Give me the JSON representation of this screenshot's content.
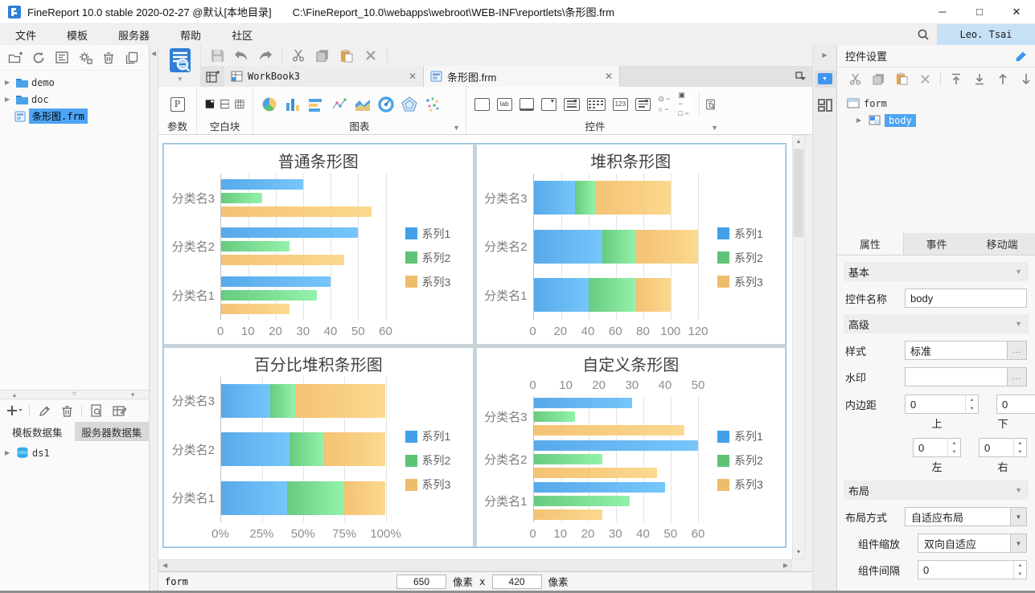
{
  "window": {
    "app_title": "FineReport 10.0 stable 2020-02-27 @默认[本地目录]",
    "file_path": "C:\\FineReport_10.0\\webapps\\webroot\\WEB-INF\\reportlets\\条形图.frm"
  },
  "menu": {
    "file": "文件",
    "template": "模板",
    "server": "服务器",
    "help": "帮助",
    "community": "社区",
    "user": "Leo. Tsai"
  },
  "file_tree": {
    "items": [
      {
        "label": "demo"
      },
      {
        "label": "doc"
      },
      {
        "label": "条形图.frm"
      }
    ]
  },
  "doc_tabs": {
    "workbook": "WorkBook3",
    "current": "条形图.frm"
  },
  "palette": {
    "param": "参数",
    "blank": "空白块",
    "chart": "图表",
    "widget": "控件"
  },
  "icons": {
    "param_glyph": "P",
    "lab_glyph": "lab",
    "num_glyph": "123"
  },
  "dataset_panel": {
    "tab_template": "模板数据集",
    "tab_server": "服务器数据集",
    "ds1": "ds1"
  },
  "canvas_status": {
    "form": "form",
    "width": "650",
    "px1": "像素",
    "x": "x",
    "height": "420",
    "px2": "像素"
  },
  "widget_panel": {
    "title": "控件设置",
    "tree_root": "form",
    "tree_child": "body",
    "tab_attr": "属性",
    "tab_event": "事件",
    "tab_mobile": "移动端",
    "sec_basic": "基本",
    "sec_advanced": "高级",
    "sec_layout": "布局",
    "name_label": "控件名称",
    "name_value": "body",
    "style_label": "样式",
    "style_value": "标准",
    "watermark_label": "水印",
    "watermark_value": "",
    "padding_label": "内边距",
    "pad_top": "0",
    "pad_bottom": "0",
    "pad_left": "0",
    "pad_right": "0",
    "lbl_top": "上",
    "lbl_bottom": "下",
    "lbl_left": "左",
    "lbl_right": "右",
    "layout_mode_label": "布局方式",
    "layout_mode_value": "自适应布局",
    "scale_label": "组件缩放",
    "scale_value": "双向自适应",
    "gap_label": "组件间隔",
    "gap_value": "0",
    "ellipsis": "..."
  },
  "chart_colors": [
    {
      "from": "#58a9ea",
      "to": "#76c6fb",
      "legend": "#41a0e8"
    },
    {
      "from": "#67cb80",
      "to": "#93f2a9",
      "legend": "#5dc476"
    },
    {
      "from": "#f4c273",
      "to": "#fbd98f",
      "legend": "#eebd6b"
    }
  ],
  "chart_data": [
    {
      "type": "bar",
      "variant": "grouped",
      "title": "普通条形图",
      "categories": [
        "分类名1",
        "分类名2",
        "分类名3"
      ],
      "series": [
        {
          "name": "系列1",
          "values": [
            40,
            50,
            30
          ]
        },
        {
          "name": "系列2",
          "values": [
            35,
            25,
            15
          ]
        },
        {
          "name": "系列3",
          "values": [
            25,
            45,
            55
          ]
        }
      ],
      "x_axis": {
        "max": 60,
        "ticks": [
          0,
          10,
          20,
          30,
          40,
          50,
          60
        ],
        "labels": [
          "0",
          "10",
          "20",
          "30",
          "40",
          "50",
          "60"
        ]
      },
      "legend_position": "right",
      "grid": true
    },
    {
      "type": "bar",
      "variant": "stacked",
      "title": "堆积条形图",
      "categories": [
        "分类名1",
        "分类名2",
        "分类名3"
      ],
      "series": [
        {
          "name": "系列1",
          "values": [
            40,
            50,
            30
          ]
        },
        {
          "name": "系列2",
          "values": [
            35,
            25,
            15
          ]
        },
        {
          "name": "系列3",
          "values": [
            25,
            45,
            55
          ]
        }
      ],
      "x_axis": {
        "max": 120,
        "ticks": [
          0,
          20,
          40,
          60,
          80,
          100,
          120
        ],
        "labels": [
          "0",
          "20",
          "40",
          "60",
          "80",
          "100",
          "120"
        ]
      },
      "legend_position": "right",
      "grid": true
    },
    {
      "type": "bar",
      "variant": "percent",
      "title": "百分比堆积条形图",
      "categories": [
        "分类名1",
        "分类名2",
        "分类名3"
      ],
      "series": [
        {
          "name": "系列1",
          "values": [
            40,
            50,
            30
          ]
        },
        {
          "name": "系列2",
          "values": [
            35,
            25,
            15
          ]
        },
        {
          "name": "系列3",
          "values": [
            25,
            45,
            55
          ]
        }
      ],
      "x_axis": {
        "max": 100,
        "ticks": [
          0,
          25,
          50,
          75,
          100
        ],
        "labels": [
          "0%",
          "25%",
          "50%",
          "75%",
          "100%"
        ]
      },
      "legend_position": "right",
      "grid": true
    },
    {
      "type": "bar",
      "variant": "grouped",
      "title": "自定义条形图",
      "categories": [
        "分类名1",
        "分类名2",
        "分类名3"
      ],
      "series": [
        {
          "name": "系列1",
          "values": [
            40,
            50,
            30
          ],
          "axis": "top"
        },
        {
          "name": "系列2",
          "values": [
            35,
            25,
            15
          ],
          "axis": "bottom"
        },
        {
          "name": "系列3",
          "values": [
            25,
            45,
            55
          ],
          "axis": "bottom"
        }
      ],
      "x_axis": {
        "max": 60,
        "ticks": [
          0,
          10,
          20,
          30,
          40,
          50,
          60
        ],
        "labels": [
          "0",
          "10",
          "20",
          "30",
          "40",
          "50",
          "60"
        ]
      },
      "x_axis_top": {
        "max": 50,
        "ticks": [
          0,
          10,
          20,
          30,
          40,
          50
        ],
        "labels": [
          "0",
          "10",
          "20",
          "30",
          "40",
          "50"
        ]
      },
      "legend_position": "right",
      "grid": true
    }
  ]
}
